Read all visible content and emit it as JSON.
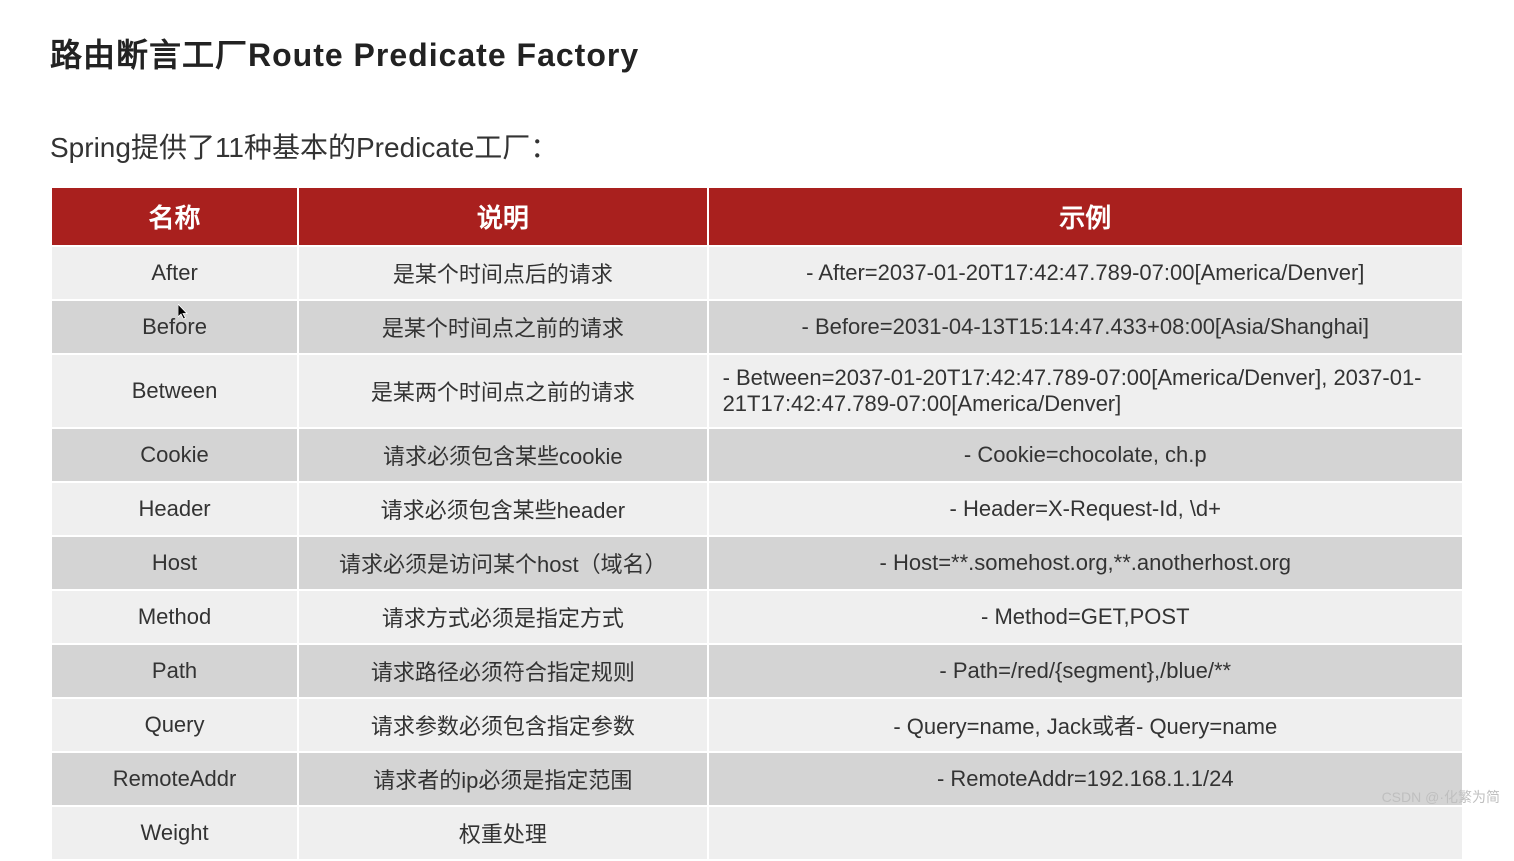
{
  "title": "路由断言工厂Route Predicate Factory",
  "subtitle": "Spring提供了11种基本的Predicate工厂：",
  "watermark": "CSDN @·化繁为简",
  "table": {
    "header_bg": "#a9201e",
    "header_fg": "#ffffff",
    "row_odd_bg": "#efefef",
    "row_even_bg": "#d4d4d4",
    "border_color": "#ffffff",
    "header_fontsize": 26,
    "cell_fontsize": 22,
    "columns": [
      "名称",
      "说明",
      "示例"
    ],
    "column_widths_pct": [
      17.5,
      29,
      53.5
    ],
    "rows": [
      {
        "name": "After",
        "desc": "是某个时间点后的请求",
        "example": "- After=2037-01-20T17:42:47.789-07:00[America/Denver]",
        "example_align": "center"
      },
      {
        "name": "Before",
        "desc": "是某个时间点之前的请求",
        "example": "- Before=2031-04-13T15:14:47.433+08:00[Asia/Shanghai]",
        "example_align": "center"
      },
      {
        "name": "Between",
        "desc": "是某两个时间点之前的请求",
        "example": "- Between=2037-01-20T17:42:47.789-07:00[America/Denver], 2037-01-21T17:42:47.789-07:00[America/Denver]",
        "example_align": "left"
      },
      {
        "name": "Cookie",
        "desc": "请求必须包含某些cookie",
        "example": "- Cookie=chocolate, ch.p",
        "example_align": "center"
      },
      {
        "name": "Header",
        "desc": "请求必须包含某些header",
        "example": "- Header=X-Request-Id, \\d+",
        "example_align": "center"
      },
      {
        "name": "Host",
        "desc": "请求必须是访问某个host（域名）",
        "example": "- Host=**.somehost.org,**.anotherhost.org",
        "example_align": "center"
      },
      {
        "name": "Method",
        "desc": "请求方式必须是指定方式",
        "example": "- Method=GET,POST",
        "example_align": "center"
      },
      {
        "name": "Path",
        "desc": "请求路径必须符合指定规则",
        "example": "- Path=/red/{segment},/blue/**",
        "example_align": "center"
      },
      {
        "name": "Query",
        "desc": "请求参数必须包含指定参数",
        "example": "- Query=name, Jack或者- Query=name",
        "example_align": "center"
      },
      {
        "name": "RemoteAddr",
        "desc": "请求者的ip必须是指定范围",
        "example": "- RemoteAddr=192.168.1.1/24",
        "example_align": "center"
      },
      {
        "name": "Weight",
        "desc": "权重处理",
        "example": "",
        "example_align": "center"
      }
    ]
  }
}
